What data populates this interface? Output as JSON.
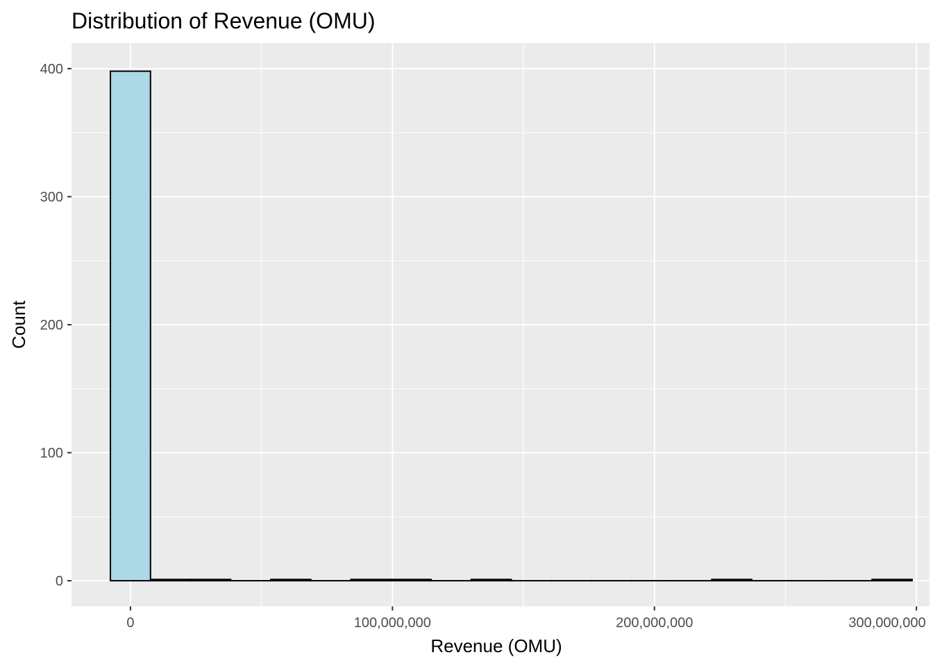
{
  "chart_data": {
    "type": "bar",
    "title": "Distribution of Revenue (OMU)",
    "xlabel": "Revenue (OMU)",
    "ylabel": "Count",
    "grid": true,
    "legend": "none",
    "xlim": [
      -22500000,
      305000000
    ],
    "ylim": [
      -20,
      420
    ],
    "x_ticks": [
      0,
      100000000,
      200000000,
      300000000
    ],
    "x_tick_labels": [
      "0",
      "100,000,000",
      "200,000,000",
      "300,000,000"
    ],
    "y_ticks": [
      0,
      100,
      200,
      300,
      400
    ],
    "y_tick_labels": [
      "0",
      "100",
      "200",
      "300",
      "400"
    ],
    "bin_width": 15300000,
    "bins": [
      {
        "x": 0,
        "count": 398
      },
      {
        "x": 15300000,
        "count": 1
      },
      {
        "x": 30600000,
        "count": 1
      },
      {
        "x": 45900000,
        "count": 0
      },
      {
        "x": 61200000,
        "count": 1
      },
      {
        "x": 76500000,
        "count": 0
      },
      {
        "x": 91800000,
        "count": 1
      },
      {
        "x": 107100000,
        "count": 1
      },
      {
        "x": 122400000,
        "count": 0
      },
      {
        "x": 137700000,
        "count": 1
      },
      {
        "x": 153000000,
        "count": 0
      },
      {
        "x": 168300000,
        "count": 0
      },
      {
        "x": 183600000,
        "count": 0
      },
      {
        "x": 198900000,
        "count": 0
      },
      {
        "x": 214200000,
        "count": 0
      },
      {
        "x": 229500000,
        "count": 1
      },
      {
        "x": 244800000,
        "count": 0
      },
      {
        "x": 260100000,
        "count": 0
      },
      {
        "x": 275400000,
        "count": 0
      },
      {
        "x": 290700000,
        "count": 1
      }
    ],
    "colors": {
      "fill": "#add8e6",
      "stroke": "#000000",
      "panel": "#ebebeb",
      "grid": "#ffffff"
    }
  }
}
